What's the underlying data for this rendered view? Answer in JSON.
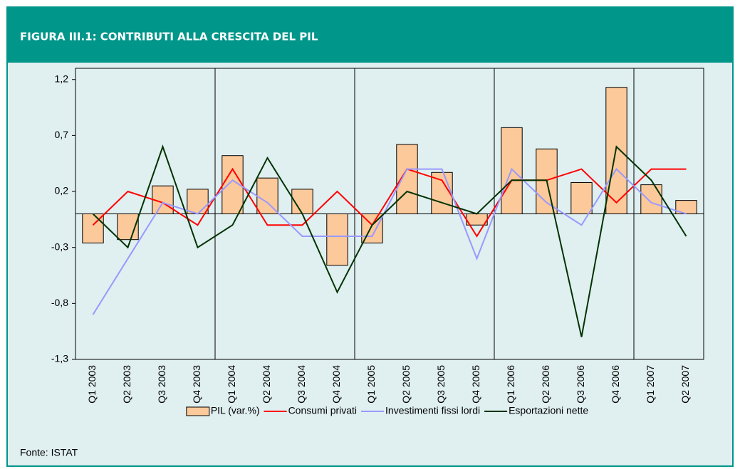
{
  "chart_data": {
    "type": "bar",
    "title": "FIGURA III.1: CONTRIBUTI ALLA CRESCITA DEL PIL",
    "source": "Fonte: ISTAT",
    "categories": [
      "Q1 2003",
      "Q2 2003",
      "Q3 2003",
      "Q4 2003",
      "Q1 2004",
      "Q2 2004",
      "Q3 2004",
      "Q4 2004",
      "Q1 2005",
      "Q2 2005",
      "Q3 2005",
      "Q4 2005",
      "Q1 2006",
      "Q2 2006",
      "Q3 2006",
      "Q4 2006",
      "Q1 2007",
      "Q2 2007"
    ],
    "series": [
      {
        "name": "PIL (var.%)",
        "type": "bar",
        "color": "#fcc99a",
        "values": [
          -0.26,
          -0.23,
          0.25,
          0.22,
          0.52,
          0.32,
          0.22,
          -0.46,
          -0.26,
          0.62,
          0.37,
          -0.1,
          0.77,
          0.58,
          0.28,
          1.13,
          0.26,
          0.12
        ]
      },
      {
        "name": "Consumi privati",
        "type": "line",
        "color": "#ff0000",
        "values": [
          -0.1,
          0.2,
          0.1,
          -0.1,
          0.4,
          -0.1,
          -0.1,
          0.2,
          -0.1,
          0.4,
          0.3,
          -0.2,
          0.3,
          0.3,
          0.4,
          0.1,
          0.4,
          0.4
        ]
      },
      {
        "name": "Investimenti fissi lordi",
        "type": "line",
        "color": "#9999ff",
        "values": [
          -0.9,
          -0.4,
          0.1,
          0.0,
          0.3,
          0.1,
          -0.2,
          -0.2,
          -0.2,
          0.4,
          0.4,
          -0.4,
          0.4,
          0.1,
          -0.1,
          0.4,
          0.1,
          0.0
        ]
      },
      {
        "name": "Esportazioni nette",
        "type": "line",
        "color": "#003300",
        "values": [
          0.0,
          -0.3,
          0.6,
          -0.3,
          -0.1,
          0.5,
          0.0,
          -0.7,
          -0.1,
          0.2,
          0.1,
          0.0,
          0.3,
          0.3,
          -1.1,
          0.6,
          0.3,
          -0.2
        ]
      }
    ],
    "ylim": [
      -1.3,
      1.3
    ],
    "yticks": [
      {
        "value": -1.3,
        "label": "-1,3"
      },
      {
        "value": -0.8,
        "label": "-0,8"
      },
      {
        "value": -0.3,
        "label": "-0,3"
      },
      {
        "value": 0.2,
        "label": "0,2"
      },
      {
        "value": 0.7,
        "label": "0,7"
      },
      {
        "value": 1.2,
        "label": "1,2"
      }
    ],
    "legend": "bottom"
  }
}
